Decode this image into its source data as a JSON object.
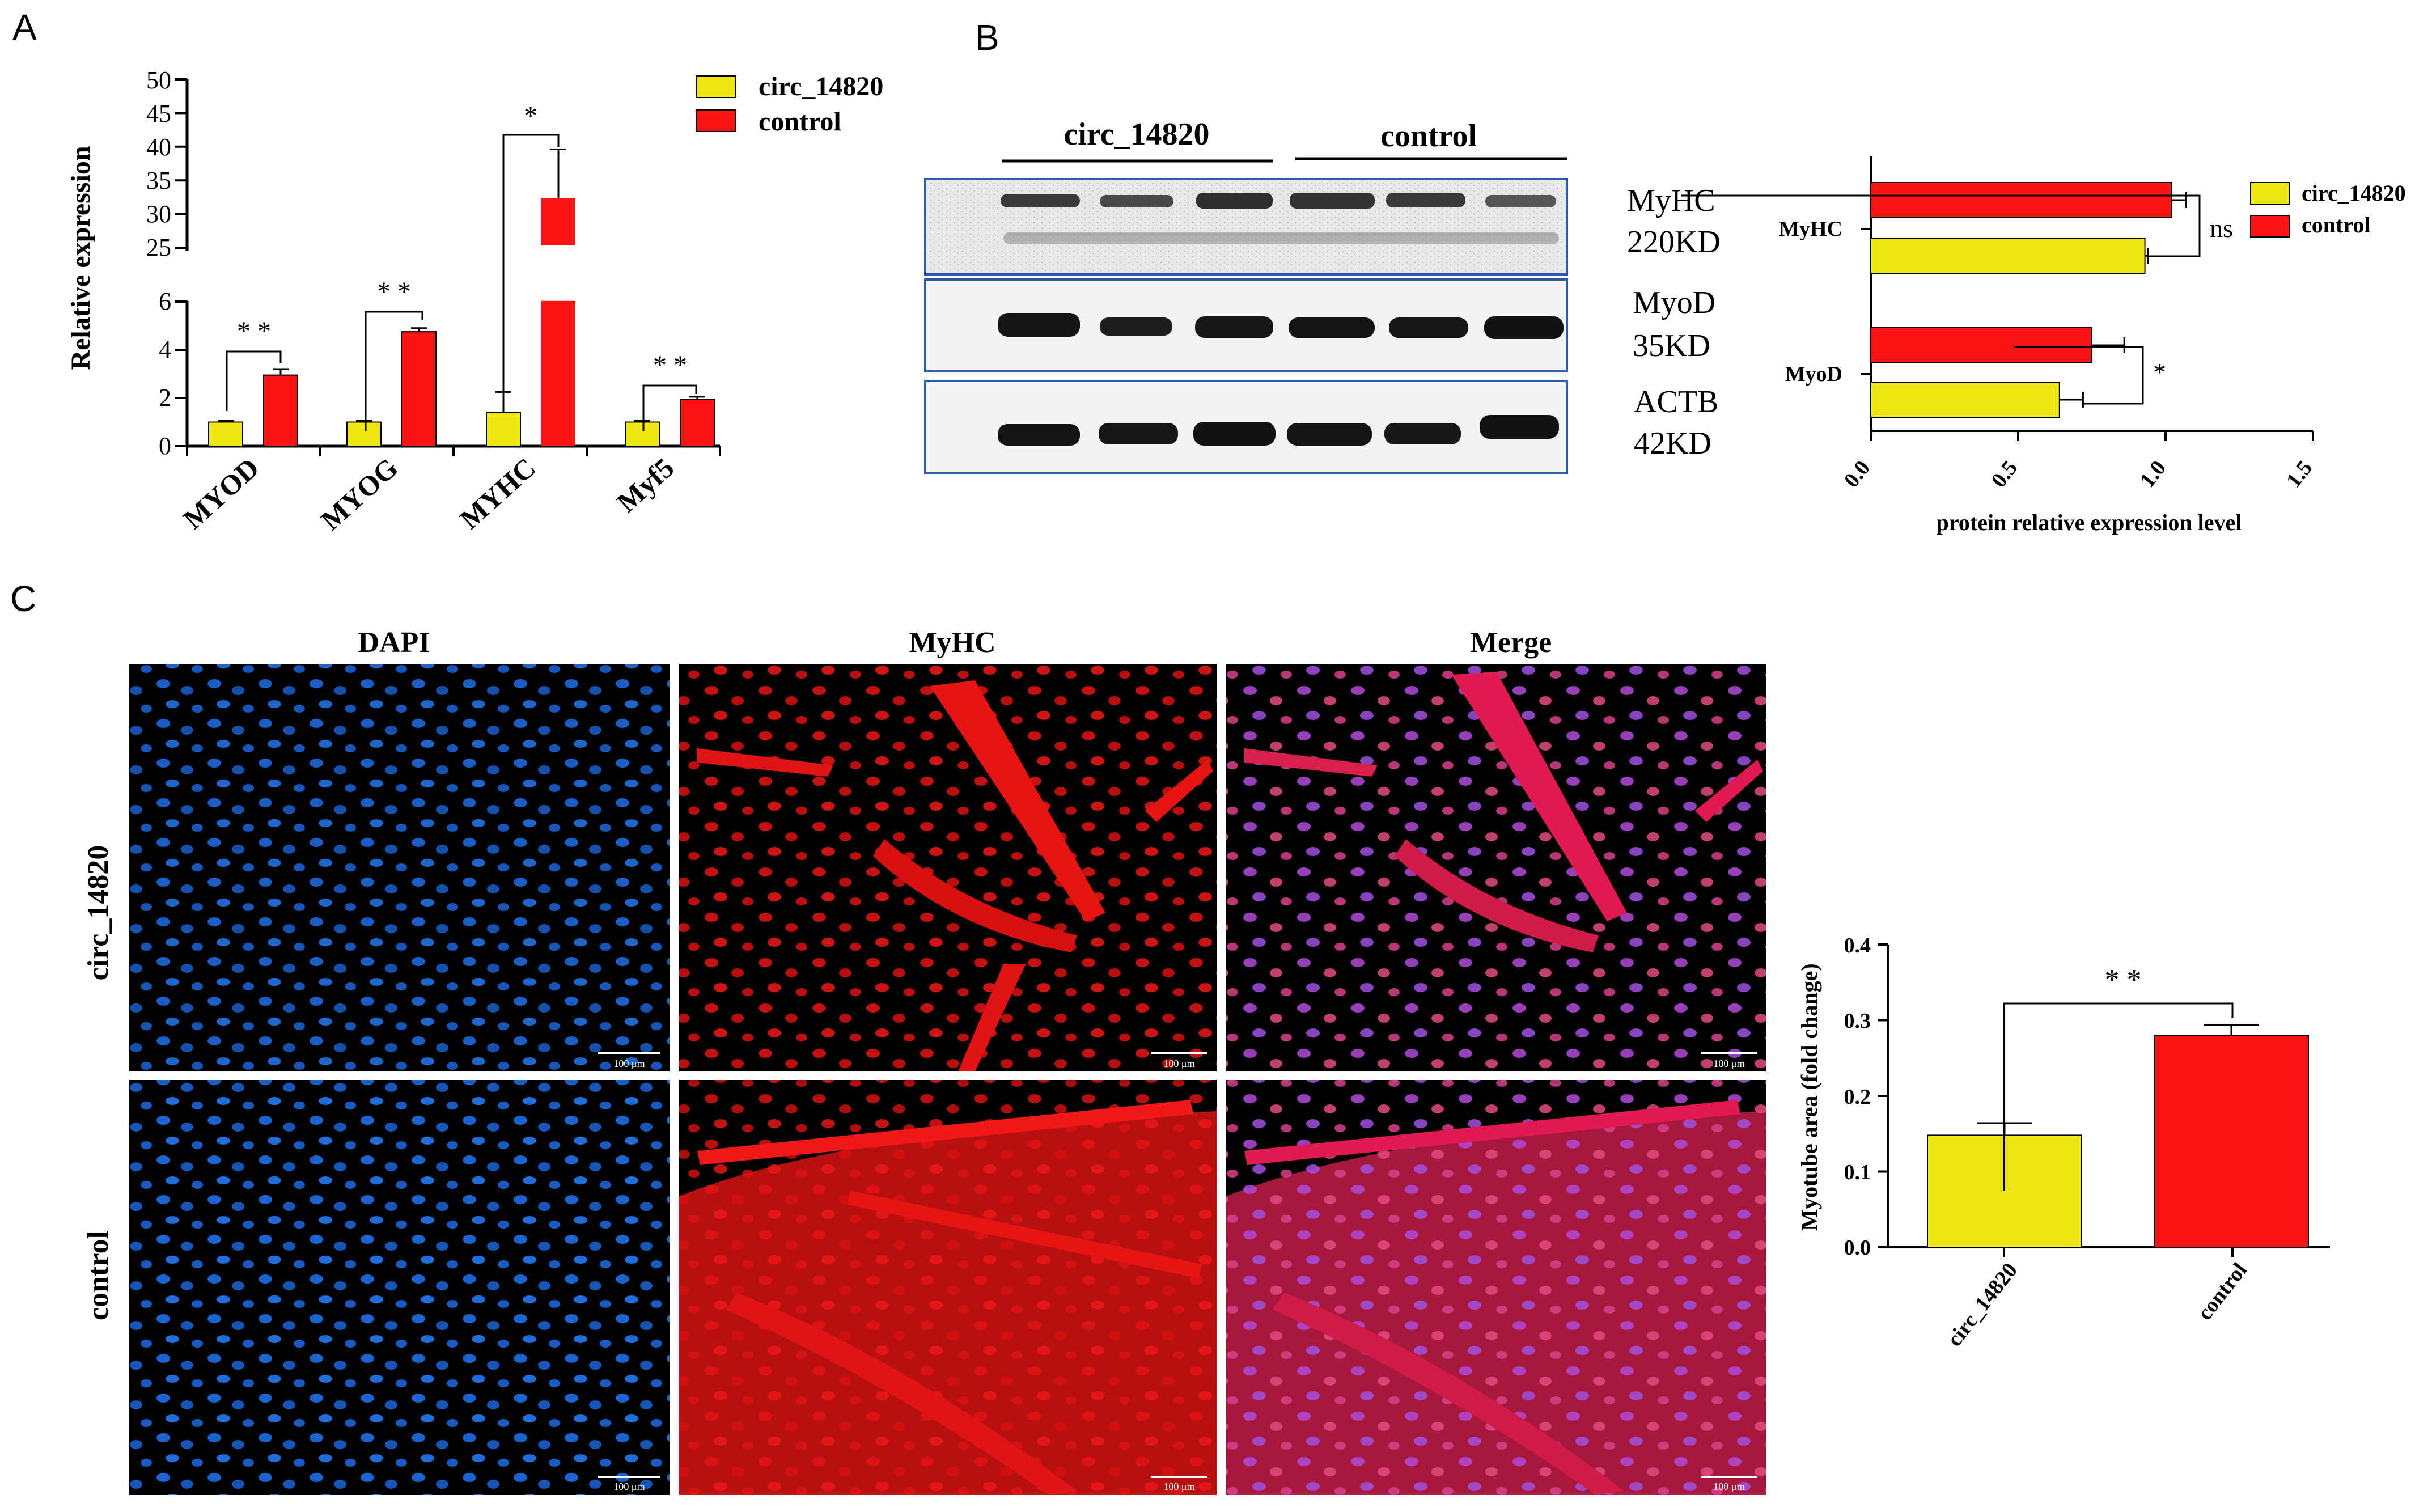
{
  "colors": {
    "circ": "#f0e614",
    "control": "#fa1414",
    "dapi": "#1e6ee6",
    "myhc": "#e61414",
    "axis": "#000000",
    "blot_frame": "#2a5aa8"
  },
  "panel_labels": {
    "a": "A",
    "b": "B",
    "c": "C"
  },
  "panelA": {
    "ylabel": "Relative expression",
    "legend": [
      "circ_14820",
      "control"
    ],
    "categories": [
      "MYOD",
      "MYOG",
      "MYHC",
      "Myf5"
    ],
    "significance": [
      "* *",
      "* *",
      "*",
      "* *"
    ],
    "upper_ticks": [
      "25",
      "30",
      "35",
      "40",
      "45",
      "50"
    ],
    "lower_ticks": [
      "0",
      "2",
      "4",
      "6"
    ]
  },
  "panelB": {
    "blot": {
      "group_labels": [
        "circ_14820",
        "control"
      ],
      "rows": [
        {
          "name": "MyHC",
          "size": "220KD"
        },
        {
          "name": "MyoD",
          "size": "35KD"
        },
        {
          "name": "ACTB",
          "size": "42KD"
        }
      ]
    },
    "xlabel": "protein relative expression level",
    "legend": [
      "circ_14820",
      "control"
    ],
    "categories": [
      "MyHC",
      "MyoD"
    ],
    "significance": [
      "ns",
      "*"
    ],
    "xticks": [
      "0.0",
      "0.5",
      "1.0",
      "1.5"
    ]
  },
  "panelC": {
    "columns": [
      "DAPI",
      "MyHC",
      "Merge"
    ],
    "rows": [
      "circ_14820",
      "control"
    ],
    "scalebar": "100 μm",
    "ylabel": "Myotube area (fold change)",
    "categories": [
      "circ_14820",
      "control"
    ],
    "significance": "* *",
    "yticks": [
      "0.0",
      "0.1",
      "0.2",
      "0.3",
      "0.4"
    ]
  },
  "chart_data": [
    {
      "type": "bar",
      "panel": "A",
      "categories": [
        "MYOD",
        "MYOG",
        "MYHC",
        "Myf5"
      ],
      "series": [
        {
          "name": "circ_14820",
          "values": [
            1.0,
            1.0,
            1.4,
            1.0
          ],
          "errors": [
            0.05,
            0.05,
            0.85,
            0.05
          ]
        },
        {
          "name": "control",
          "values": [
            2.95,
            4.75,
            32.4,
            1.95
          ],
          "errors": [
            0.25,
            0.15,
            7.2,
            0.1
          ]
        }
      ],
      "xlabel": "",
      "ylabel": "Relative expression",
      "ylim": [
        0,
        50
      ],
      "axis_break": [
        6.5,
        24
      ],
      "legend_position": "top-right"
    },
    {
      "type": "bar",
      "orientation": "horizontal",
      "panel": "B",
      "categories": [
        "MyHC",
        "MyoD"
      ],
      "series": [
        {
          "name": "control",
          "values": [
            1.02,
            0.75
          ],
          "errors": [
            0.05,
            0.11
          ]
        },
        {
          "name": "circ_14820",
          "values": [
            0.93,
            0.64
          ],
          "errors": [
            0.01,
            0.08
          ]
        }
      ],
      "xlabel": "protein relative expression level",
      "ylabel": "",
      "xlim": [
        0,
        1.5
      ],
      "legend_position": "top-right"
    },
    {
      "type": "bar",
      "panel": "C",
      "categories": [
        "circ_14820",
        "control"
      ],
      "values": [
        0.148,
        0.28
      ],
      "errors": [
        0.016,
        0.014
      ],
      "xlabel": "",
      "ylabel": "Myotube area (fold change)",
      "ylim": [
        0,
        0.4
      ]
    }
  ]
}
